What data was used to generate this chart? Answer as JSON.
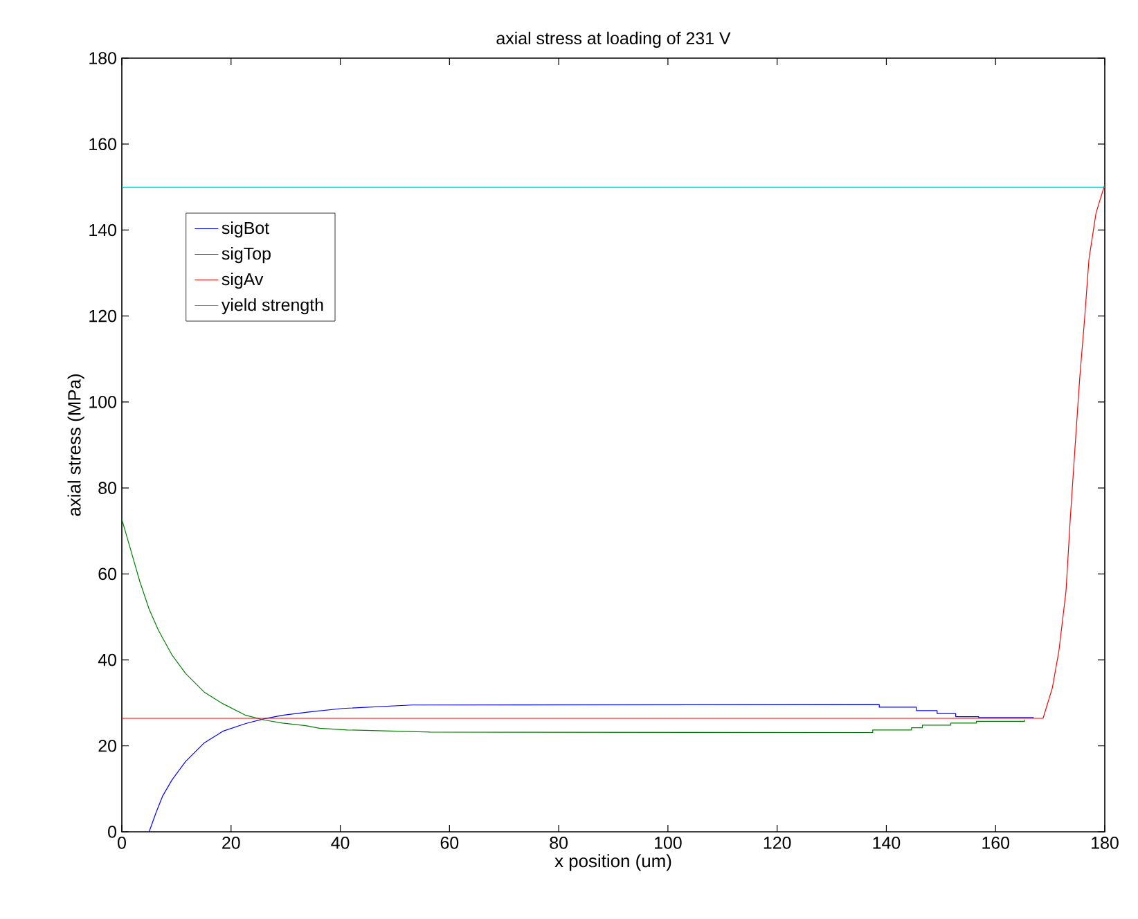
{
  "chart_data": {
    "type": "line",
    "title": "axial stress at loading of 231 V",
    "xlabel": "x position (um)",
    "ylabel": "axial stress (MPa)",
    "xlim": [
      0,
      180
    ],
    "ylim": [
      0,
      180
    ],
    "xticks": [
      0,
      20,
      40,
      60,
      80,
      100,
      120,
      140,
      160,
      180
    ],
    "yticks": [
      0,
      20,
      40,
      60,
      80,
      100,
      120,
      140,
      160,
      180
    ],
    "grid": false,
    "legend": "top left",
    "marker": "none",
    "line_style": "solid",
    "series": [
      {
        "name": "sigBot",
        "color": "#0000ff",
        "x": [
          5.0,
          6.3,
          7.5,
          9.2,
          11.7,
          15.1,
          18.5,
          22.7,
          26.1,
          29.4,
          34.5,
          40.4,
          53.1,
          138.7,
          138.7,
          145.5,
          145.5,
          149.3,
          149.3,
          152.7,
          152.7,
          156.9,
          156.9,
          167.0
        ],
        "values": [
          0,
          4.6,
          8.4,
          12.1,
          16.4,
          20.7,
          23.4,
          25.2,
          26.3,
          27.1,
          27.9,
          28.7,
          29.5,
          29.6,
          29.0,
          29.0,
          28.2,
          28.2,
          27.5,
          27.5,
          26.8,
          26.8,
          26.6,
          26.6
        ]
      },
      {
        "name": "sigTop",
        "color": "#008000",
        "x": [
          0,
          1.6,
          3.3,
          5.0,
          6.7,
          9.2,
          11.7,
          15.1,
          18.5,
          22.7,
          26.1,
          29.4,
          33.7,
          36.2,
          41.3,
          56.5,
          137.5,
          137.5,
          144.6,
          144.6,
          146.6,
          146.6,
          151.8,
          151.8,
          156.5,
          156.5,
          165.3,
          165.3
        ],
        "values": [
          72.7,
          65.7,
          58.2,
          51.8,
          46.9,
          41.1,
          36.8,
          32.5,
          29.8,
          27.1,
          26.0,
          25.3,
          24.7,
          24.1,
          23.7,
          23.2,
          23.1,
          23.7,
          23.7,
          24.2,
          24.2,
          24.8,
          24.8,
          25.3,
          25.3,
          25.7,
          25.7,
          26.1
        ]
      },
      {
        "name": "sigAv",
        "color": "#ff0000",
        "x": [
          0,
          168.7,
          170.4,
          171.6,
          172.9,
          173.7,
          174.6,
          175.4,
          176.3,
          177.1,
          178.4,
          180
        ],
        "values": [
          26.4,
          26.4,
          33.5,
          42.1,
          56.0,
          73.2,
          90.4,
          105.4,
          119.3,
          133.2,
          144.0,
          150.6
        ]
      },
      {
        "name": "yield strength",
        "color": "#00bfbf",
        "x": [
          0,
          180
        ],
        "values": [
          150,
          150
        ]
      }
    ]
  }
}
